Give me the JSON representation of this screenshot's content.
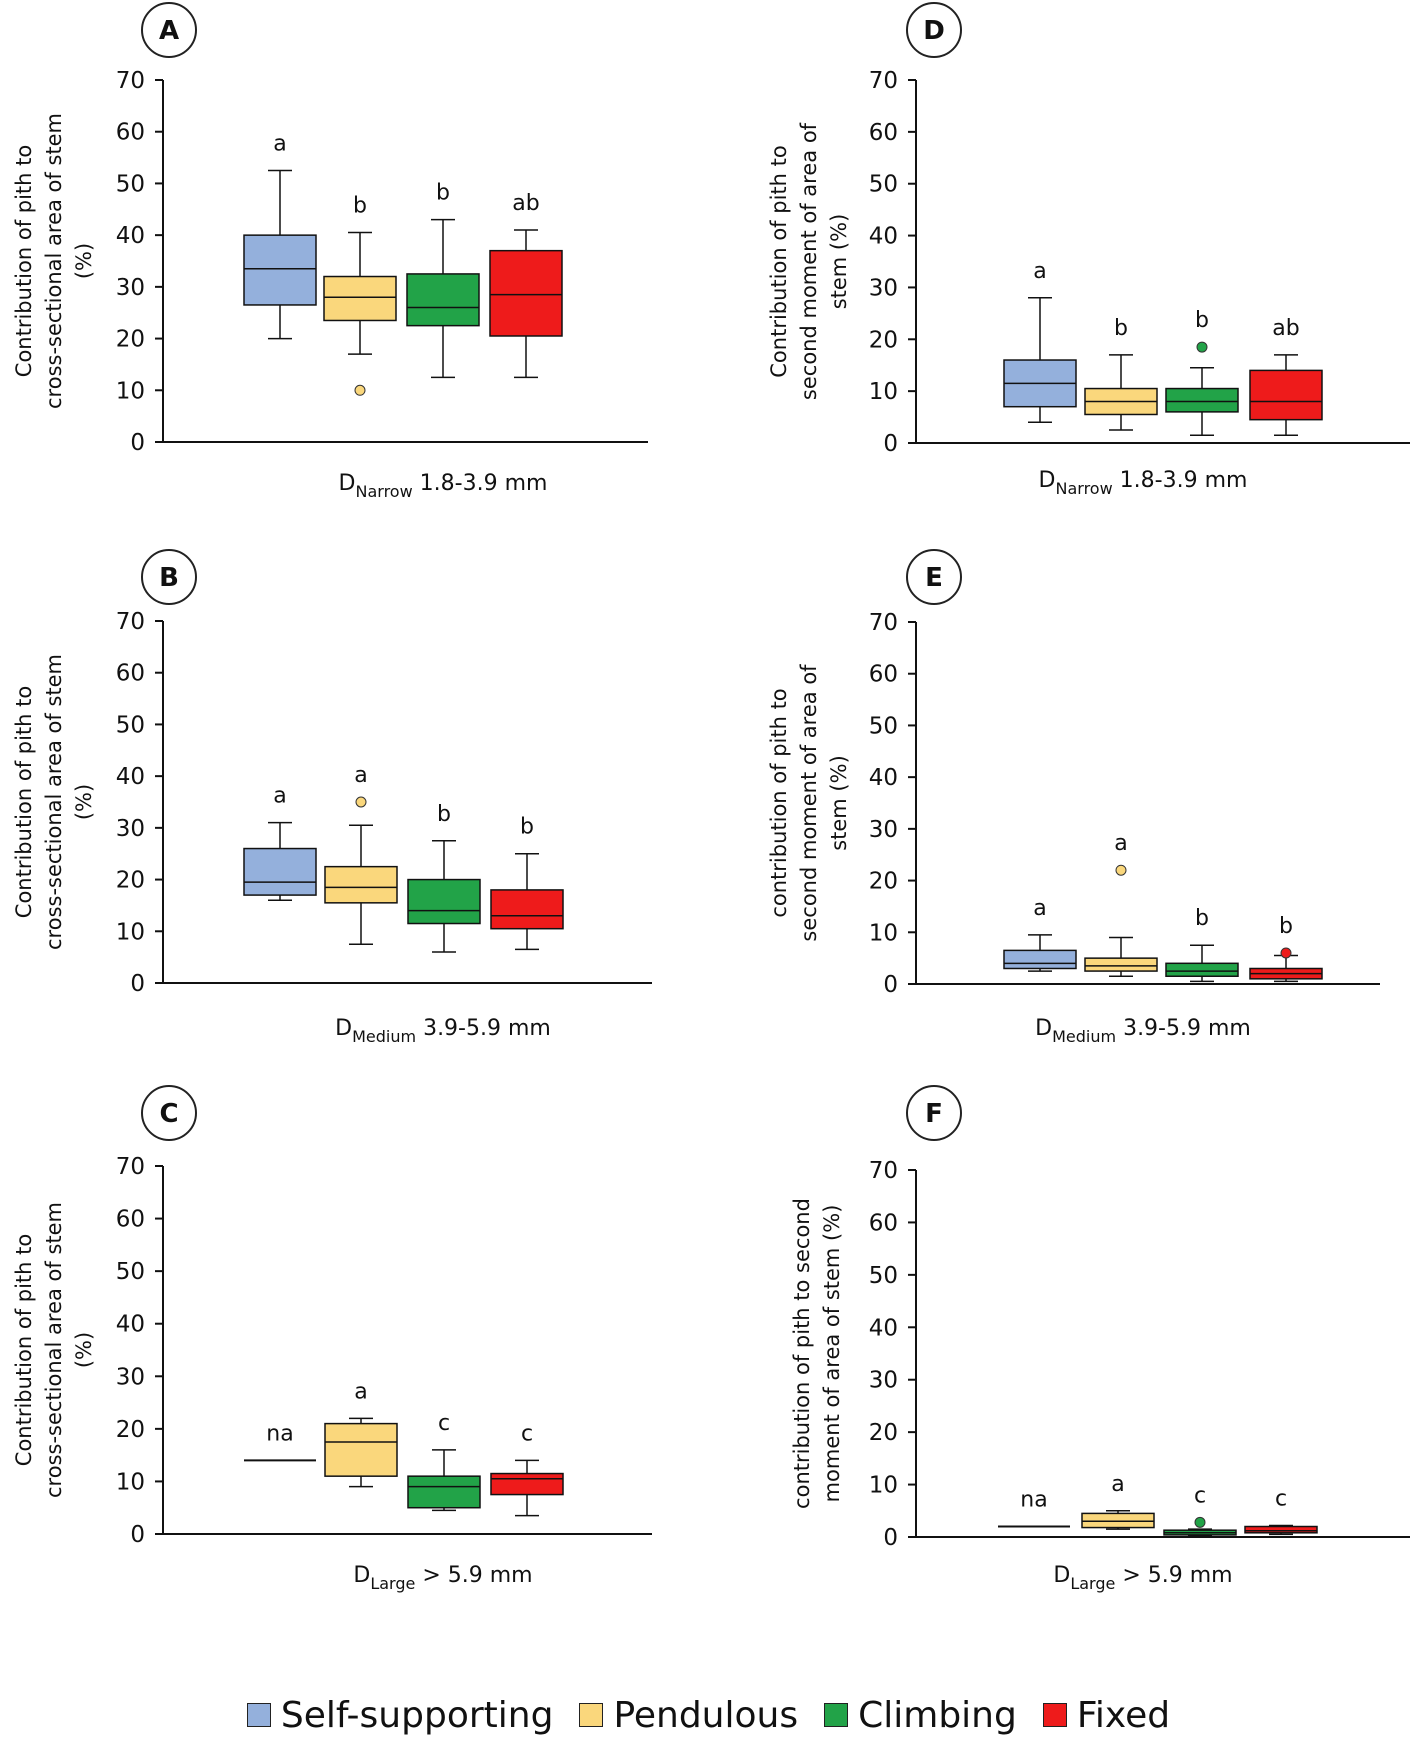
{
  "colors": {
    "Self-supporting": "#94b0dc",
    "Pendulous": "#fad77c",
    "Climbing": "#22a348",
    "Fixed": "#ee1b1b"
  },
  "legend": {
    "items": [
      {
        "label": "Self-supporting",
        "color": "#94b0dc"
      },
      {
        "label": "Pendulous",
        "color": "#fad77c"
      },
      {
        "label": "Climbing",
        "color": "#22a348"
      },
      {
        "label": "Fixed",
        "color": "#ee1b1b"
      }
    ]
  },
  "chart_data": [
    {
      "panel": "A",
      "type": "box",
      "ylabel": [
        "Contribution of pith to",
        "cross-sectional area of stem",
        "(%)"
      ],
      "xlabel": {
        "main": "D",
        "sub": "Narrow",
        "rest": " 1.8-3.9 mm"
      },
      "ylim": [
        0,
        70
      ],
      "yticks": [
        0,
        10,
        20,
        30,
        40,
        50,
        60,
        70
      ],
      "categories": [
        "Self-supporting",
        "Pendulous",
        "Climbing",
        "Fixed"
      ],
      "boxes": [
        {
          "min": 20,
          "q1": 26.5,
          "median": 33.5,
          "q3": 40,
          "max": 52.5,
          "outliers": [],
          "letter": "a"
        },
        {
          "min": 17,
          "q1": 23.5,
          "median": 28,
          "q3": 32,
          "max": 40.5,
          "outliers": [
            10
          ],
          "letter": "b"
        },
        {
          "min": 12.5,
          "q1": 22.5,
          "median": 26,
          "q3": 32.5,
          "max": 43,
          "outliers": [],
          "letter": "b"
        },
        {
          "min": 12.5,
          "q1": 20.5,
          "median": 28.5,
          "q3": 37,
          "max": 41,
          "outliers": [],
          "letter": "ab"
        }
      ]
    },
    {
      "panel": "B",
      "type": "box",
      "ylabel": [
        "Contribution of pith to",
        "cross-sectional area of stem",
        "(%)"
      ],
      "xlabel": {
        "main": "D",
        "sub": "Medium",
        "rest": " 3.9-5.9 mm"
      },
      "ylim": [
        0,
        70
      ],
      "yticks": [
        0,
        10,
        20,
        30,
        40,
        50,
        60,
        70
      ],
      "categories": [
        "Self-supporting",
        "Pendulous",
        "Climbing",
        "Fixed"
      ],
      "boxes": [
        {
          "min": 16,
          "q1": 17,
          "median": 19.5,
          "q3": 26,
          "max": 31,
          "outliers": [],
          "letter": "a"
        },
        {
          "min": 7.5,
          "q1": 15.5,
          "median": 18.5,
          "q3": 22.5,
          "max": 30.5,
          "outliers": [
            35
          ],
          "letter": "a"
        },
        {
          "min": 6,
          "q1": 11.5,
          "median": 14,
          "q3": 20,
          "max": 27.5,
          "outliers": [],
          "letter": "b"
        },
        {
          "min": 6.5,
          "q1": 10.5,
          "median": 13,
          "q3": 18,
          "max": 25,
          "outliers": [],
          "letter": "b"
        }
      ]
    },
    {
      "panel": "C",
      "type": "box",
      "ylabel": [
        "Contribution of pith to",
        "cross-sectional area of stem",
        "(%)"
      ],
      "xlabel": {
        "main": "D",
        "sub": "Large",
        "rest": " > 5.9 mm"
      },
      "ylim": [
        0,
        70
      ],
      "yticks": [
        0,
        10,
        20,
        30,
        40,
        50,
        60,
        70
      ],
      "categories": [
        "Self-supporting",
        "Pendulous",
        "Climbing",
        "Fixed"
      ],
      "boxes": [
        {
          "min": 14,
          "q1": 14,
          "median": 14,
          "q3": 14,
          "max": 14,
          "outliers": [],
          "letter": "na"
        },
        {
          "min": 9,
          "q1": 11,
          "median": 17.5,
          "q3": 21,
          "max": 22,
          "outliers": [],
          "letter": "a"
        },
        {
          "min": 4.5,
          "q1": 5,
          "median": 9,
          "q3": 11,
          "max": 16,
          "outliers": [],
          "letter": "c"
        },
        {
          "min": 3.5,
          "q1": 7.5,
          "median": 10.5,
          "q3": 11.5,
          "max": 14,
          "outliers": [],
          "letter": "c"
        }
      ]
    },
    {
      "panel": "D",
      "type": "box",
      "ylabel": [
        "Contribution of pith to",
        "second moment of area of",
        "stem (%)"
      ],
      "xlabel": {
        "main": "D",
        "sub": "Narrow",
        "rest": " 1.8-3.9 mm"
      },
      "ylim": [
        0,
        70
      ],
      "yticks": [
        0,
        10,
        20,
        30,
        40,
        50,
        60,
        70
      ],
      "categories": [
        "Self-supporting",
        "Pendulous",
        "Climbing",
        "Fixed"
      ],
      "boxes": [
        {
          "min": 4,
          "q1": 7,
          "median": 11.5,
          "q3": 16,
          "max": 28,
          "outliers": [],
          "letter": "a"
        },
        {
          "min": 2.5,
          "q1": 5.5,
          "median": 8,
          "q3": 10.5,
          "max": 17,
          "outliers": [],
          "letter": "b"
        },
        {
          "min": 1.5,
          "q1": 6,
          "median": 8,
          "q3": 10.5,
          "max": 14.5,
          "outliers": [
            18.5
          ],
          "letter": "b"
        },
        {
          "min": 1.5,
          "q1": 4.5,
          "median": 8,
          "q3": 14,
          "max": 17,
          "outliers": [],
          "letter": "ab"
        }
      ]
    },
    {
      "panel": "E",
      "type": "box",
      "ylabel": [
        "contribution of pith to",
        "second moment of area of",
        "stem (%)"
      ],
      "xlabel": {
        "main": "D",
        "sub": "Medium",
        "rest": " 3.9-5.9 mm"
      },
      "ylim": [
        0,
        70
      ],
      "yticks": [
        0,
        10,
        20,
        30,
        40,
        50,
        60,
        70
      ],
      "categories": [
        "Self-supporting",
        "Pendulous",
        "Climbing",
        "Fixed"
      ],
      "boxes": [
        {
          "min": 2.5,
          "q1": 3,
          "median": 4,
          "q3": 6.5,
          "max": 9.5,
          "outliers": [],
          "letter": "a"
        },
        {
          "min": 1.5,
          "q1": 2.5,
          "median": 3.5,
          "q3": 5,
          "max": 9,
          "outliers": [
            22
          ],
          "letter": "a"
        },
        {
          "min": 0.5,
          "q1": 1.5,
          "median": 2.5,
          "q3": 4,
          "max": 7.5,
          "outliers": [],
          "letter": "b"
        },
        {
          "min": 0.5,
          "q1": 1,
          "median": 2,
          "q3": 3,
          "max": 5.5,
          "outliers": [
            6
          ],
          "letter": "b"
        }
      ]
    },
    {
      "panel": "F",
      "type": "box",
      "ylabel": [
        "contribution of pith to second",
        "moment of area of stem (%)"
      ],
      "xlabel": {
        "main": "D",
        "sub": "Large",
        "rest": " > 5.9 mm"
      },
      "ylim": [
        0,
        70
      ],
      "yticks": [
        0,
        10,
        20,
        30,
        40,
        50,
        60,
        70
      ],
      "categories": [
        "Self-supporting",
        "Pendulous",
        "Climbing",
        "Fixed"
      ],
      "boxes": [
        {
          "min": 2,
          "q1": 2,
          "median": 2,
          "q3": 2,
          "max": 2,
          "outliers": [],
          "letter": "na"
        },
        {
          "min": 1.5,
          "q1": 1.8,
          "median": 3,
          "q3": 4.5,
          "max": 5,
          "outliers": [],
          "letter": "a"
        },
        {
          "min": 0.2,
          "q1": 0.4,
          "median": 0.8,
          "q3": 1.3,
          "max": 1.5,
          "outliers": [
            2.8
          ],
          "letter": "c"
        },
        {
          "min": 0.5,
          "q1": 0.8,
          "median": 1.2,
          "q3": 2,
          "max": 2.2,
          "outliers": [],
          "letter": "c"
        }
      ]
    }
  ]
}
